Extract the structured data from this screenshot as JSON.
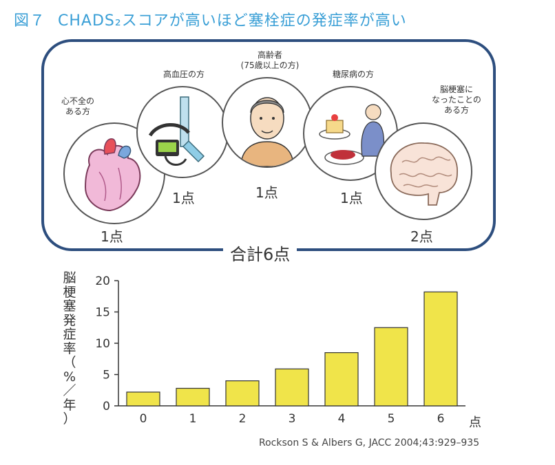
{
  "figure": {
    "number": "図７",
    "title": "CHADS₂スコアが高いほど塞栓症の発症率が高い"
  },
  "risk_factors": [
    {
      "label": "心不全の\nある方",
      "points": "1点",
      "icon": "heart-icon"
    },
    {
      "label": "高血圧の方",
      "points": "1点",
      "icon": "blood-pressure-monitor-icon"
    },
    {
      "label": "高齢者\n(75歳以上の方)",
      "points": "1点",
      "icon": "elderly-man-icon"
    },
    {
      "label": "糖尿病の方",
      "points": "1点",
      "icon": "diabetes-food-icon"
    },
    {
      "label": "脳梗塞に\nなったことの\nある方",
      "points": "2点",
      "icon": "brain-icon"
    }
  ],
  "total_label": "合計6点",
  "chart_data": {
    "type": "bar",
    "categories": [
      "0",
      "1",
      "2",
      "3",
      "4",
      "5",
      "6"
    ],
    "values": [
      2.2,
      2.8,
      4.0,
      5.9,
      8.5,
      12.5,
      18.2
    ],
    "xlabel": "点",
    "ylabel": "脳梗塞発症率（%／年）",
    "ylim": [
      0,
      20
    ],
    "yticks": [
      "0",
      "5",
      "10",
      "15",
      "20"
    ],
    "bar_color": "#f0e44a",
    "grid": false
  },
  "colors": {
    "title": "#3a9fd6",
    "panel_border": "#2d4e7e",
    "bar_fill": "#f0e44a"
  },
  "citation": "Rockson S & Albers G, JACC 2004;43:929–935"
}
